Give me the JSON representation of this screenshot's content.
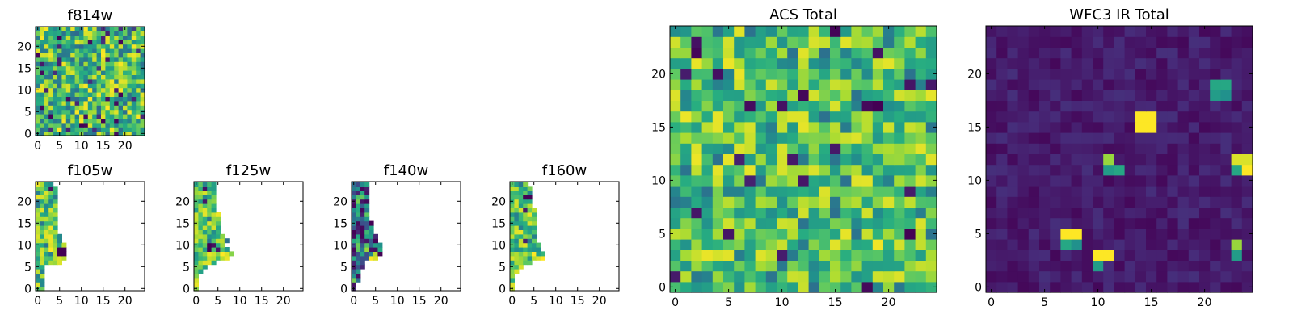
{
  "chart_data": [
    {
      "type": "heatmap",
      "id": "f814w",
      "title": "f814w",
      "xlim": [
        0,
        25
      ],
      "ylim": [
        0,
        25
      ],
      "xticks": [
        0,
        5,
        10,
        15,
        20
      ],
      "yticks": [
        0,
        5,
        10,
        15,
        20
      ],
      "colormap": "viridis",
      "fill": "full",
      "style": "noisy",
      "seed": 11
    },
    {
      "type": "heatmap",
      "id": "f105w",
      "title": "f105w",
      "xlim": [
        0,
        25
      ],
      "ylim": [
        0,
        25
      ],
      "xticks": [
        0,
        5,
        10,
        15,
        20
      ],
      "yticks": [
        0,
        5,
        10,
        15,
        20
      ],
      "colormap": "viridis",
      "fill": "partial",
      "style": "greenish",
      "seed": 23,
      "row_extent": [
        2,
        2,
        2,
        2,
        2,
        2,
        6,
        7,
        7,
        7,
        7,
        6,
        6,
        5,
        5,
        5,
        5,
        5,
        5,
        5,
        5,
        5,
        5,
        5,
        4
      ],
      "hot_cells": [
        [
          5,
          9,
          0.0
        ],
        [
          5,
          8,
          0.0
        ],
        [
          6,
          9,
          0.0
        ],
        [
          6,
          8,
          0.0
        ],
        [
          3,
          9,
          1.0
        ],
        [
          3,
          10,
          0.95
        ],
        [
          4,
          7,
          0.9
        ],
        [
          5,
          7,
          0.95
        ],
        [
          6,
          7,
          0.9
        ],
        [
          4,
          6,
          0.85
        ]
      ]
    },
    {
      "type": "heatmap",
      "id": "f125w",
      "title": "f125w",
      "xlim": [
        0,
        25
      ],
      "ylim": [
        0,
        25
      ],
      "xticks": [
        0,
        5,
        10,
        15,
        20
      ],
      "yticks": [
        0,
        5,
        10,
        15,
        20
      ],
      "colormap": "viridis",
      "fill": "partial",
      "style": "greenish",
      "seed": 37,
      "row_extent": [
        1,
        1,
        1,
        1,
        2,
        3,
        5,
        8,
        9,
        8,
        7,
        8,
        7,
        6,
        6,
        6,
        6,
        6,
        5,
        5,
        5,
        5,
        5,
        5,
        5
      ],
      "hot_cells": [
        [
          3,
          9,
          0.0
        ],
        [
          3,
          10,
          0.0
        ],
        [
          6,
          8,
          1.0
        ],
        [
          7,
          8,
          0.95
        ],
        [
          6,
          7,
          0.9
        ],
        [
          5,
          11,
          0.9
        ],
        [
          6,
          10,
          0.85
        ]
      ]
    },
    {
      "type": "heatmap",
      "id": "f140w",
      "title": "f140w",
      "xlim": [
        0,
        25
      ],
      "ylim": [
        0,
        25
      ],
      "xticks": [
        0,
        5,
        10,
        15,
        20
      ],
      "yticks": [
        0,
        5,
        10,
        15,
        20
      ],
      "colormap": "viridis",
      "fill": "partial",
      "style": "dark",
      "seed": 41,
      "row_extent": [
        1,
        1,
        2,
        2,
        2,
        3,
        3,
        6,
        7,
        7,
        7,
        6,
        6,
        5,
        5,
        5,
        4,
        4,
        4,
        4,
        4,
        4,
        4,
        4,
        4
      ],
      "hot_cells": [
        [
          4,
          7,
          1.0
        ],
        [
          5,
          7,
          0.95
        ],
        [
          5,
          8,
          0.9
        ],
        [
          3,
          9,
          0.85
        ]
      ]
    },
    {
      "type": "heatmap",
      "id": "f160w",
      "title": "f160w",
      "xlim": [
        0,
        25
      ],
      "ylim": [
        0,
        25
      ],
      "xticks": [
        0,
        5,
        10,
        15,
        20
      ],
      "yticks": [
        0,
        5,
        10,
        15,
        20
      ],
      "colormap": "viridis",
      "fill": "partial",
      "style": "greenish",
      "seed": 53,
      "row_extent": [
        1,
        1,
        1,
        1,
        2,
        3,
        5,
        8,
        8,
        7,
        7,
        6,
        6,
        6,
        6,
        6,
        6,
        6,
        6,
        5,
        5,
        5,
        5,
        5,
        4
      ],
      "hot_cells": [
        [
          3,
          21,
          0.0
        ],
        [
          4,
          21,
          0.0
        ],
        [
          5,
          8,
          1.0
        ],
        [
          6,
          7,
          0.95
        ],
        [
          7,
          7,
          1.0
        ],
        [
          5,
          7,
          0.9
        ],
        [
          0,
          1,
          0.95
        ],
        [
          0,
          0,
          0.9
        ]
      ]
    },
    {
      "type": "heatmap",
      "id": "acs-total",
      "title": "ACS Total",
      "xlim": [
        0,
        25
      ],
      "ylim": [
        0,
        25
      ],
      "xticks": [
        0,
        5,
        10,
        15,
        20
      ],
      "yticks": [
        0,
        5,
        10,
        15,
        20
      ],
      "colormap": "viridis",
      "fill": "full",
      "style": "greenish",
      "seed": 67
    },
    {
      "type": "heatmap",
      "id": "wfc3-ir-total",
      "title": "WFC3 IR Total",
      "xlim": [
        0,
        25
      ],
      "ylim": [
        0,
        25
      ],
      "xticks": [
        0,
        5,
        10,
        15,
        20
      ],
      "yticks": [
        0,
        5,
        10,
        15,
        20
      ],
      "colormap": "viridis",
      "fill": "full",
      "style": "sparse",
      "seed": 79,
      "hot_cells": [
        [
          14,
          15,
          1.0
        ],
        [
          15,
          15,
          1.0
        ],
        [
          14,
          16,
          1.0
        ],
        [
          15,
          16,
          1.0
        ],
        [
          7,
          5,
          1.0
        ],
        [
          8,
          5,
          1.0
        ],
        [
          7,
          4,
          0.6
        ],
        [
          8,
          4,
          0.5
        ],
        [
          10,
          3,
          1.0
        ],
        [
          11,
          3,
          1.0
        ],
        [
          10,
          2,
          0.55
        ],
        [
          11,
          12,
          0.85
        ],
        [
          11,
          11,
          0.55
        ],
        [
          12,
          11,
          0.6
        ],
        [
          23,
          12,
          0.95
        ],
        [
          24,
          12,
          0.95
        ],
        [
          24,
          11,
          1.0
        ],
        [
          23,
          11,
          0.6
        ],
        [
          21,
          19,
          0.6
        ],
        [
          22,
          19,
          0.6
        ],
        [
          21,
          18,
          0.55
        ],
        [
          23,
          4,
          0.85
        ],
        [
          23,
          3,
          0.55
        ],
        [
          22,
          18,
          0.5
        ]
      ]
    }
  ]
}
